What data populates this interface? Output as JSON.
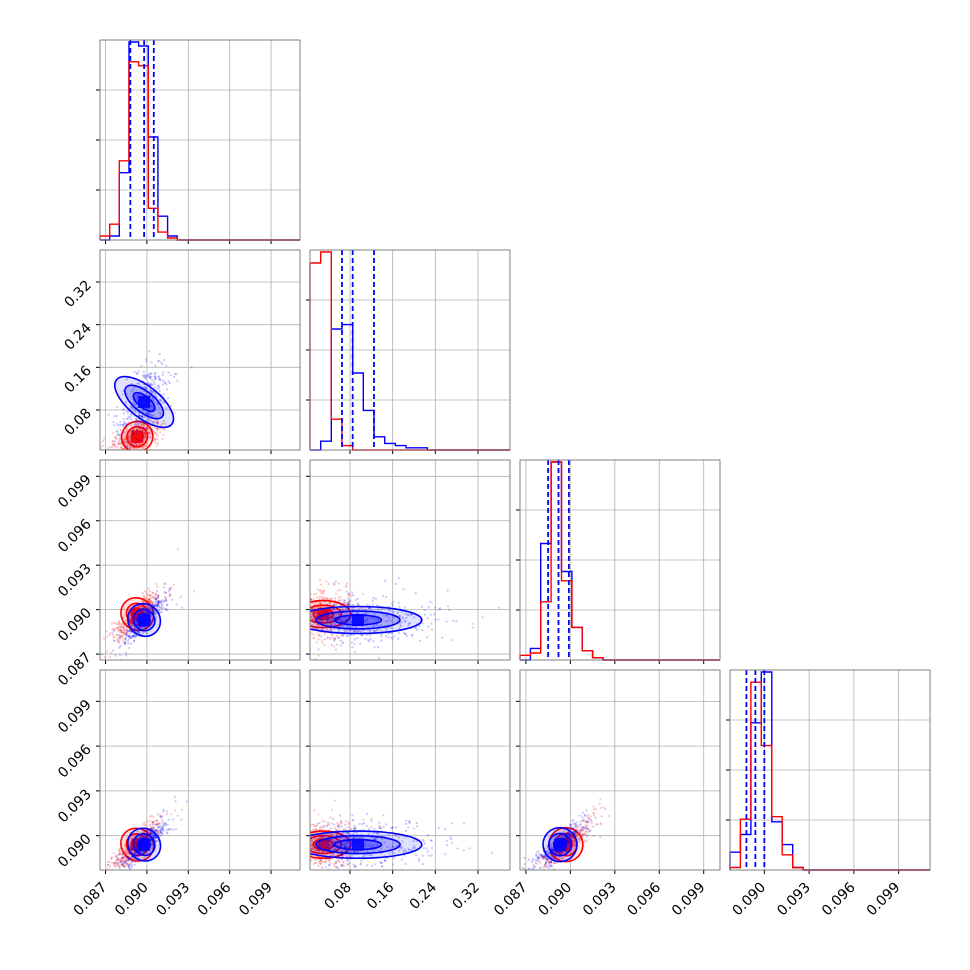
{
  "chart_data": {
    "type": "scatter",
    "kind": "corner-plot",
    "grid": true,
    "series": [
      {
        "color": "#0000ff"
      },
      {
        "color": "#ff0000"
      }
    ],
    "params": [
      {
        "range": [
          0.0866,
          0.1011
        ],
        "ticks": [
          0.087,
          0.09,
          0.093,
          0.096,
          0.099
        ],
        "tick_labels": [
          "0.087",
          "0.090",
          "0.093",
          "0.096",
          "0.099"
        ],
        "mean": [
          0.0898,
          0.0893
        ],
        "sd": [
          0.0006,
          0.0006
        ]
      },
      {
        "range": [
          0.005,
          0.38
        ],
        "ticks": [
          0.08,
          0.16,
          0.24,
          0.32
        ],
        "tick_labels": [
          "0.08",
          "0.16",
          "0.24",
          "0.32"
        ],
        "mean": [
          0.095,
          0.03
        ],
        "sd": [
          0.035,
          0.015
        ]
      },
      {
        "range": [
          0.0866,
          0.1001
        ],
        "ticks": [
          0.087,
          0.09,
          0.093,
          0.096,
          0.099
        ],
        "tick_labels": [
          "0.087",
          "0.090",
          "0.093",
          "0.096",
          "0.099"
        ],
        "mean": [
          0.0893,
          0.0897
        ],
        "sd": [
          0.0006,
          0.0006
        ]
      },
      {
        "range": [
          0.0877,
          0.1011
        ],
        "ticks": [
          0.09,
          0.093,
          0.096,
          0.099
        ],
        "tick_labels": [
          "0.090",
          "0.093",
          "0.096",
          "0.099"
        ],
        "mean": [
          0.0894,
          0.0894
        ],
        "sd": [
          0.0006,
          0.0006
        ]
      }
    ],
    "quantiles": [
      [
        0.0888,
        0.0898,
        0.0905
      ],
      [
        0.065,
        0.085,
        0.125
      ],
      [
        0.0885,
        0.0892,
        0.0899
      ],
      [
        0.0888,
        0.0894,
        0.09
      ]
    ],
    "histograms_1d": [
      {
        "edges": [
          0.0866,
          0.0873,
          0.088,
          0.0887,
          0.0894,
          0.0901,
          0.0908,
          0.0915,
          0.0922,
          0.0929,
          0.0936,
          0.1011
        ],
        "counts": [
          [
            0,
            2,
            34,
            100,
            98,
            52,
            12,
            2,
            0,
            0,
            0
          ],
          [
            2,
            8,
            40,
            90,
            88,
            16,
            4,
            1,
            0,
            0,
            0
          ]
        ]
      },
      {
        "edges": [
          0.005,
          0.025,
          0.045,
          0.065,
          0.085,
          0.105,
          0.125,
          0.145,
          0.165,
          0.185,
          0.205,
          0.225,
          0.245,
          0.265,
          0.285,
          0.305,
          0.325,
          0.345,
          0.365,
          0.38
        ],
        "counts": [
          [
            0,
            4,
            55,
            57,
            35,
            18,
            6,
            3,
            2,
            1,
            1,
            0,
            0,
            0,
            0,
            0,
            0,
            0,
            0
          ],
          [
            85,
            90,
            14,
            2,
            0,
            0,
            0,
            0,
            0,
            0,
            0,
            0,
            0,
            0,
            0,
            0,
            0,
            0,
            0
          ]
        ]
      },
      {
        "edges": [
          0.0866,
          0.0873,
          0.088,
          0.0887,
          0.0894,
          0.0901,
          0.0908,
          0.0915,
          0.0922,
          0.0929,
          0.1001
        ],
        "counts": [
          [
            0,
            5,
            50,
            85,
            38,
            14,
            4,
            1,
            0,
            0
          ],
          [
            2,
            3,
            25,
            85,
            34,
            14,
            4,
            1,
            0,
            0
          ]
        ]
      },
      {
        "edges": [
          0.0877,
          0.0884,
          0.0891,
          0.0898,
          0.0905,
          0.0912,
          0.0919,
          0.0926,
          0.1011
        ],
        "counts": [
          [
            7,
            14,
            58,
            78,
            19,
            10,
            1,
            0
          ],
          [
            1,
            20,
            74,
            49,
            21,
            6,
            1,
            0
          ]
        ]
      }
    ]
  }
}
